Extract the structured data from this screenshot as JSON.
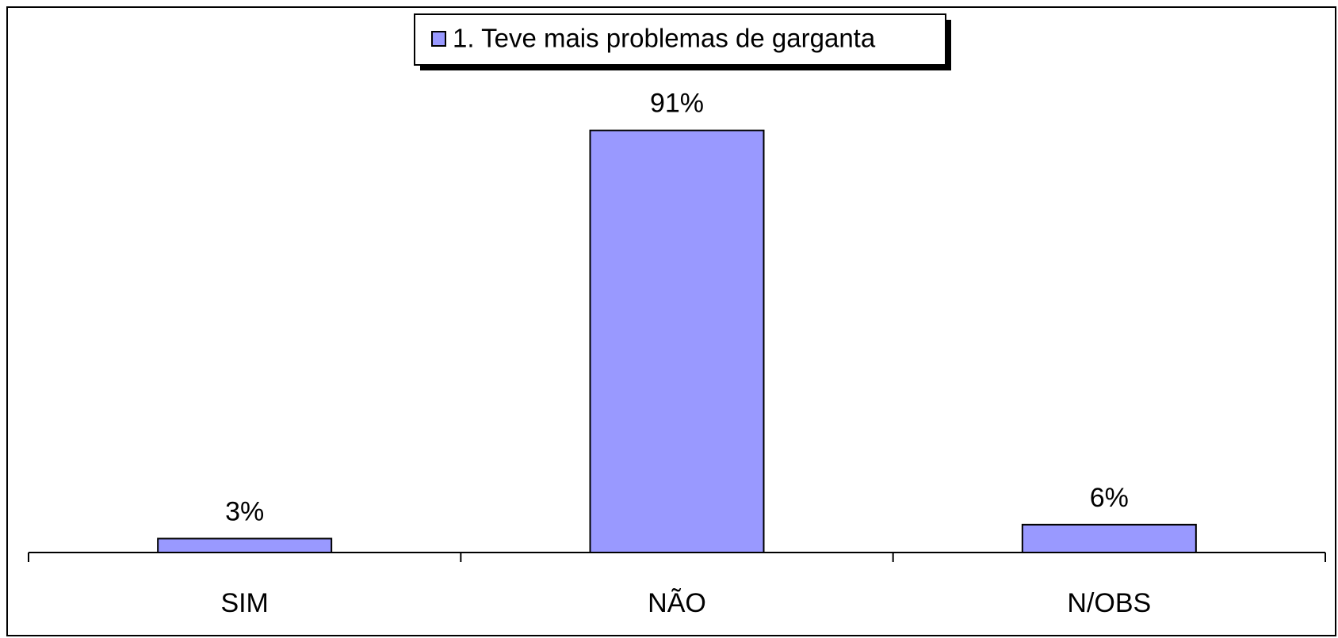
{
  "chart_data": {
    "type": "bar",
    "categories": [
      "SIM",
      "NÃO",
      "N/OBS"
    ],
    "series": [
      {
        "name": "1. Teve mais problemas de garganta",
        "color": "#9999ff",
        "values": [
          3,
          91,
          6
        ],
        "value_labels": [
          "3%",
          "91%",
          "6%"
        ]
      }
    ]
  }
}
